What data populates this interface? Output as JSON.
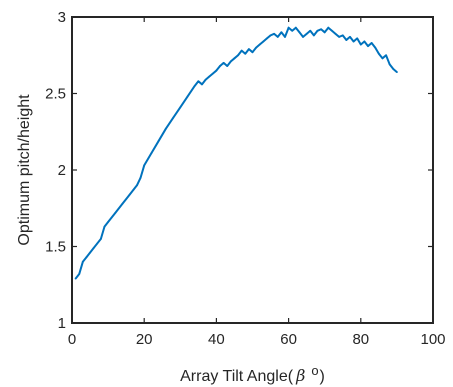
{
  "chart_data": {
    "type": "line",
    "title": "",
    "xlabel": "Array Tilt Angle( β o)",
    "xlabel_parts": {
      "prefix": "Array Tilt Angle(",
      "symbol": "β",
      "superscript": "o",
      "suffix": ")"
    },
    "ylabel": "Optimum pitch/height",
    "xlim": [
      0,
      100
    ],
    "ylim": [
      1,
      3
    ],
    "xticks": [
      0,
      20,
      40,
      60,
      80,
      100
    ],
    "yticks": [
      1,
      1.5,
      2,
      2.5,
      3
    ],
    "xtick_labels": [
      "0",
      "20",
      "40",
      "60",
      "80",
      "100"
    ],
    "ytick_labels": [
      "1",
      "1.5",
      "2",
      "2.5",
      "3"
    ],
    "grid": false,
    "series": [
      {
        "color": "#0072bd",
        "x": [
          1,
          2,
          3,
          4,
          5,
          6,
          7,
          8,
          9,
          10,
          12,
          14,
          16,
          17,
          18,
          19,
          20,
          22,
          24,
          26,
          28,
          30,
          32,
          34,
          35,
          36,
          37,
          38,
          39,
          40,
          41,
          42,
          43,
          44,
          45,
          46,
          47,
          48,
          49,
          50,
          51,
          52,
          53,
          54,
          55,
          56,
          57,
          58,
          59,
          60,
          61,
          62,
          63,
          64,
          65,
          66,
          67,
          68,
          69,
          70,
          71,
          72,
          73,
          74,
          75,
          76,
          77,
          78,
          79,
          80,
          81,
          82,
          83,
          84,
          85,
          86,
          87,
          88,
          89,
          90
        ],
        "y": [
          1.29,
          1.32,
          1.4,
          1.43,
          1.46,
          1.49,
          1.52,
          1.55,
          1.63,
          1.66,
          1.72,
          1.78,
          1.84,
          1.87,
          1.9,
          1.95,
          2.03,
          2.11,
          2.19,
          2.27,
          2.34,
          2.41,
          2.48,
          2.55,
          2.58,
          2.56,
          2.59,
          2.61,
          2.63,
          2.65,
          2.68,
          2.7,
          2.68,
          2.71,
          2.73,
          2.75,
          2.78,
          2.76,
          2.79,
          2.77,
          2.8,
          2.82,
          2.84,
          2.86,
          2.88,
          2.89,
          2.87,
          2.9,
          2.87,
          2.93,
          2.91,
          2.93,
          2.9,
          2.87,
          2.89,
          2.91,
          2.88,
          2.91,
          2.92,
          2.9,
          2.93,
          2.91,
          2.89,
          2.87,
          2.88,
          2.85,
          2.87,
          2.84,
          2.86,
          2.82,
          2.84,
          2.81,
          2.83,
          2.8,
          2.76,
          2.73,
          2.75,
          2.69,
          2.66,
          2.64
        ]
      }
    ]
  }
}
